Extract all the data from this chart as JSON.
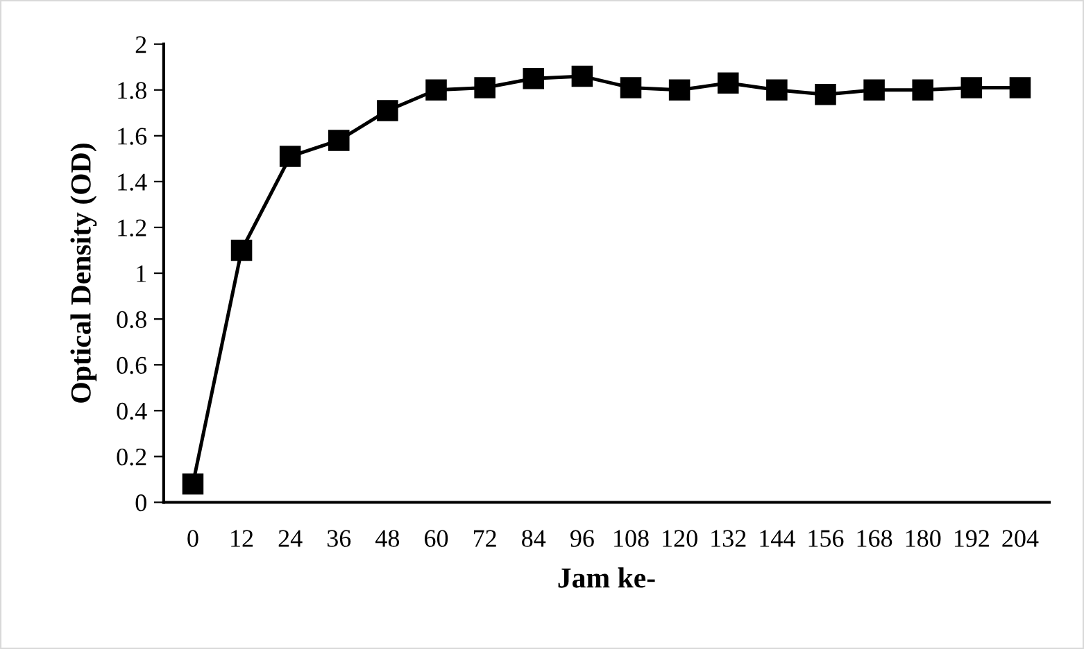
{
  "chart_data": {
    "type": "line",
    "xlabel": "Jam ke-",
    "ylabel": "Optical Density (OD)",
    "categories": [
      "0",
      "12",
      "24",
      "36",
      "48",
      "60",
      "72",
      "84",
      "96",
      "108",
      "120",
      "132",
      "144",
      "156",
      "168",
      "180",
      "192",
      "204"
    ],
    "series": [
      {
        "color": "#000000",
        "values": [
          0.08,
          1.1,
          1.51,
          1.58,
          1.71,
          1.8,
          1.81,
          1.85,
          1.86,
          1.81,
          1.8,
          1.83,
          1.8,
          1.78,
          1.8,
          1.8,
          1.81,
          1.81
        ]
      }
    ],
    "ylim": [
      0,
      2
    ],
    "yticks": [
      0,
      0.2,
      0.4,
      0.6,
      0.8,
      1,
      1.2,
      1.4,
      1.6,
      1.8,
      2
    ],
    "grid": false,
    "marker": "square",
    "line_style": "solid"
  }
}
